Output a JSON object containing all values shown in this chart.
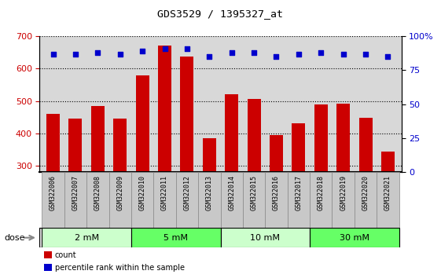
{
  "title": "GDS3529 / 1395327_at",
  "categories": [
    "GSM322006",
    "GSM322007",
    "GSM322008",
    "GSM322009",
    "GSM322010",
    "GSM322011",
    "GSM322012",
    "GSM322013",
    "GSM322014",
    "GSM322015",
    "GSM322016",
    "GSM322017",
    "GSM322018",
    "GSM322019",
    "GSM322020",
    "GSM322021"
  ],
  "bar_values": [
    460,
    447,
    484,
    447,
    580,
    672,
    638,
    385,
    522,
    507,
    395,
    432,
    490,
    491,
    448,
    343
  ],
  "bar_color": "#cc0000",
  "dot_values": [
    87,
    87,
    88,
    87,
    89,
    91,
    91,
    85,
    88,
    88,
    85,
    87,
    88,
    87,
    87,
    85
  ],
  "dot_color": "#0000cc",
  "ylim_left": [
    280,
    700
  ],
  "ylim_right": [
    0,
    100
  ],
  "yticks_left": [
    300,
    400,
    500,
    600,
    700
  ],
  "yticks_right": [
    0,
    25,
    50,
    75,
    100
  ],
  "dose_groups": [
    {
      "label": "2 mM",
      "start": 0,
      "end": 4,
      "color": "#ccffcc"
    },
    {
      "label": "5 mM",
      "start": 4,
      "end": 8,
      "color": "#66ff66"
    },
    {
      "label": "10 mM",
      "start": 8,
      "end": 12,
      "color": "#ccffcc"
    },
    {
      "label": "30 mM",
      "start": 12,
      "end": 16,
      "color": "#66ff66"
    }
  ],
  "ylabel_left_color": "#cc0000",
  "ylabel_right_color": "#0000cc",
  "bar_width": 0.6,
  "background_color": "#ffffff",
  "plot_bg_color": "#d8d8d8",
  "xtick_bg_color": "#c8c8c8",
  "dose_label": "dose",
  "legend_items": [
    {
      "label": "count",
      "color": "#cc0000"
    },
    {
      "label": "percentile rank within the sample",
      "color": "#0000cc"
    }
  ]
}
